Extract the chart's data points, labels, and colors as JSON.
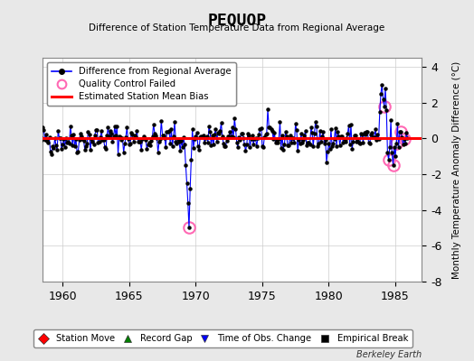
{
  "title": "PEQUOP",
  "subtitle": "Difference of Station Temperature Data from Regional Average",
  "ylabel": "Monthly Temperature Anomaly Difference (°C)",
  "xlabel_years": [
    1960,
    1965,
    1970,
    1975,
    1980,
    1985
  ],
  "xlim": [
    1958.5,
    1987.0
  ],
  "ylim": [
    -8,
    4.5
  ],
  "yticks": [
    -8,
    -6,
    -4,
    -2,
    0,
    2,
    4
  ],
  "bias_value": 0.0,
  "background_color": "#e8e8e8",
  "plot_bg_color": "#ffffff",
  "line_color": "#0000ff",
  "bias_color": "#ff0000",
  "qc_color": "#ff69b4",
  "dot_color": "#000000",
  "berkeley_earth_text": "Berkeley Earth",
  "seed": 42,
  "n_points": 336,
  "start_year": 1958.0,
  "end_year": 1985.92,
  "legend_items": [
    {
      "label": "Difference from Regional Average"
    },
    {
      "label": "Quality Control Failed"
    },
    {
      "label": "Estimated Station Mean Bias"
    }
  ],
  "bottom_legend_items": [
    {
      "label": "Station Move",
      "color": "#ff0000",
      "marker": "D"
    },
    {
      "label": "Record Gap",
      "color": "#008000",
      "marker": "^"
    },
    {
      "label": "Time of Obs. Change",
      "color": "#0000ff",
      "marker": "v"
    },
    {
      "label": "Empirical Break",
      "color": "#000000",
      "marker": "s"
    }
  ]
}
